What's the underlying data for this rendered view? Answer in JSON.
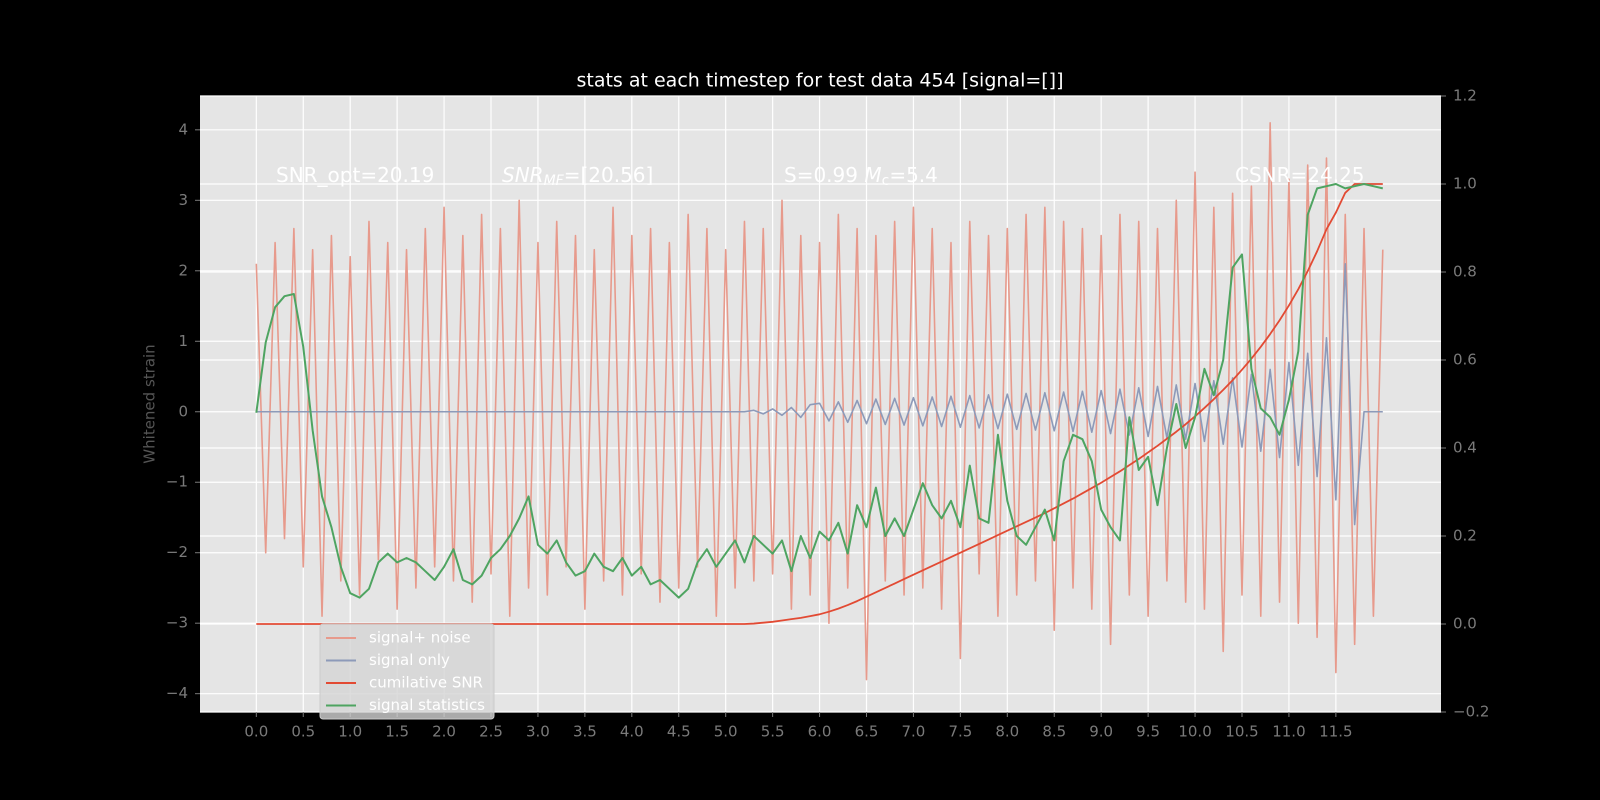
{
  "chart_data": {
    "type": "line",
    "title": "stats at each timestep for test data 454 [signal=[]]",
    "y_label": "Whitened strain",
    "annotations": [
      [
        {
          "text": "SNR_opt=20.19"
        }
      ],
      [
        {
          "text": "SNR",
          "italic": true
        },
        {
          "text": "MF",
          "sub": true,
          "italic": true
        },
        {
          "text": "=[20.56]"
        }
      ],
      [
        {
          "text": "S=0.99   "
        },
        {
          "text": "M",
          "italic": true
        },
        {
          "text": "c",
          "sub": true
        },
        {
          "text": "=5.4"
        }
      ],
      [
        {
          "text": "CSNR=24.25"
        }
      ]
    ],
    "xlim": [
      -0.6,
      12.62
    ],
    "ylim": [
      -4.26,
      4.48
    ],
    "y2lim": [
      -0.2,
      1.2
    ],
    "xticks": [
      {
        "value": 0,
        "label": "0.0"
      },
      0.5,
      {
        "value": 1,
        "label": "1.0"
      },
      1.5,
      {
        "value": 2,
        "label": "2.0"
      },
      2.5,
      {
        "value": 3,
        "label": "3.0"
      },
      3.5,
      {
        "value": 4,
        "label": "4.0"
      },
      4.5,
      {
        "value": 5,
        "label": "5.0"
      },
      5.5,
      {
        "value": 6,
        "label": "6.0"
      },
      6.5,
      {
        "value": 7,
        "label": "7.0"
      },
      7.5,
      {
        "value": 8,
        "label": "8.0"
      },
      8.5,
      {
        "value": 9,
        "label": "9.0"
      },
      9.5,
      {
        "value": 10,
        "label": "10.0"
      },
      10.5,
      {
        "value": 11,
        "label": "11.0"
      },
      11.5
    ],
    "yticks": [
      {
        "value": -4,
        "label": "−4"
      },
      {
        "value": -3,
        "label": "−3"
      },
      {
        "value": -2,
        "label": "−2"
      },
      {
        "value": -1,
        "label": "−1"
      },
      0,
      1,
      2,
      3,
      4
    ],
    "y2ticks": [
      {
        "value": -0.2,
        "label": "−0.2"
      },
      {
        "value": 0,
        "label": "0.0"
      },
      0.2,
      0.4,
      0.6,
      0.8,
      {
        "value": 1,
        "label": "1.0"
      },
      1.2
    ],
    "grid": true,
    "legend": "lower left",
    "x": [
      0,
      0.1,
      0.2,
      0.3,
      0.4,
      0.5,
      0.6,
      0.7,
      0.8,
      0.9,
      1,
      1.1,
      1.2,
      1.3,
      1.4,
      1.5,
      1.6,
      1.7,
      1.8,
      1.9,
      2,
      2.1,
      2.2,
      2.3,
      2.4,
      2.5,
      2.6,
      2.7,
      2.8,
      2.9,
      3,
      3.1,
      3.2,
      3.3,
      3.4,
      3.5,
      3.6,
      3.7,
      3.8,
      3.9,
      4,
      4.1,
      4.2,
      4.3,
      4.4,
      4.5,
      4.6,
      4.7,
      4.8,
      4.9,
      5,
      5.1,
      5.2,
      5.3,
      5.4,
      5.5,
      5.6,
      5.7,
      5.8,
      5.9,
      6,
      6.1,
      6.2,
      6.3,
      6.4,
      6.5,
      6.6,
      6.7,
      6.8,
      6.9,
      7,
      7.1,
      7.2,
      7.3,
      7.4,
      7.5,
      7.6,
      7.7,
      7.8,
      7.9,
      8,
      8.1,
      8.2,
      8.3,
      8.4,
      8.5,
      8.6,
      8.7,
      8.8,
      8.9,
      9,
      9.1,
      9.2,
      9.3,
      9.4,
      9.5,
      9.6,
      9.7,
      9.8,
      9.9,
      10,
      10.1,
      10.2,
      10.3,
      10.4,
      10.5,
      10.6,
      10.7,
      10.8,
      10.9,
      11,
      11.1,
      11.2,
      11.3,
      11.4,
      11.5,
      11.6,
      11.7,
      11.8,
      11.9,
      12
    ],
    "series": [
      {
        "name": "signal+ noise",
        "color": "#e79a8c",
        "axis": "y",
        "values": [
          2.1,
          -2.0,
          2.4,
          -1.8,
          2.6,
          -2.2,
          2.3,
          -2.9,
          2.5,
          -2.4,
          2.2,
          -2.6,
          2.7,
          -2.1,
          2.4,
          -2.8,
          2.3,
          -2.5,
          2.6,
          -2.2,
          2.9,
          -2.4,
          2.5,
          -2.7,
          2.8,
          -2.3,
          2.6,
          -2.9,
          3.0,
          -2.5,
          2.4,
          -2.6,
          2.7,
          -2.2,
          2.5,
          -2.8,
          2.3,
          -2.4,
          2.9,
          -2.6,
          2.5,
          -2.3,
          2.6,
          -2.7,
          2.4,
          -2.5,
          2.8,
          -2.2,
          2.6,
          -2.9,
          2.3,
          -2.5,
          2.7,
          -2.4,
          2.6,
          -2.3,
          3.0,
          -2.8,
          2.5,
          -2.6,
          2.4,
          -3.0,
          2.8,
          -2.5,
          2.6,
          -3.8,
          2.5,
          -2.4,
          2.7,
          -2.6,
          2.9,
          -2.5,
          2.6,
          -2.8,
          2.4,
          -3.5,
          2.7,
          -2.3,
          2.5,
          -2.9,
          2.6,
          -2.6,
          2.8,
          -2.4,
          2.9,
          -3.1,
          2.7,
          -2.5,
          2.6,
          -2.8,
          2.5,
          -3.3,
          2.8,
          -2.6,
          2.7,
          -2.9,
          2.6,
          -2.4,
          3.0,
          -2.7,
          3.4,
          -2.8,
          2.9,
          -3.4,
          3.1,
          -2.6,
          3.2,
          -2.9,
          4.1,
          -2.7,
          3.3,
          -3.0,
          3.5,
          -3.2,
          3.6,
          -3.7,
          2.8,
          -3.3,
          2.6,
          -2.9,
          2.3
        ]
      },
      {
        "name": "signal only",
        "color": "#8d9ab9",
        "axis": "y",
        "values": [
          0,
          0,
          0,
          0,
          0,
          0,
          0,
          0,
          0,
          0,
          0,
          0,
          0,
          0,
          0,
          0,
          0,
          0,
          0,
          0,
          0,
          0,
          0,
          0,
          0,
          0,
          0,
          0,
          0,
          0,
          0,
          0,
          0,
          0,
          0,
          0,
          0,
          0,
          0,
          0,
          0,
          0,
          0,
          0,
          0,
          0,
          0,
          0,
          0,
          0,
          0,
          0,
          0,
          0.02,
          -0.03,
          0.04,
          -0.05,
          0.06,
          -0.08,
          0.1,
          0.12,
          -0.13,
          0.14,
          -0.15,
          0.16,
          -0.17,
          0.18,
          -0.18,
          0.19,
          -0.19,
          0.2,
          -0.2,
          0.21,
          -0.21,
          0.22,
          -0.22,
          0.23,
          -0.23,
          0.24,
          -0.24,
          0.25,
          -0.25,
          0.26,
          -0.26,
          0.27,
          -0.27,
          0.28,
          -0.28,
          0.29,
          -0.29,
          0.3,
          -0.31,
          0.32,
          -0.33,
          0.34,
          -0.35,
          0.36,
          -0.37,
          0.38,
          -0.39,
          0.4,
          -0.42,
          0.44,
          -0.46,
          0.48,
          -0.5,
          0.53,
          -0.56,
          0.6,
          -0.65,
          0.7,
          -0.76,
          0.83,
          -0.92,
          1.05,
          -1.25,
          2.1,
          -1.6,
          0,
          0,
          0
        ]
      },
      {
        "name": "cumilative SNR",
        "color": "#e24a33",
        "axis": "y2",
        "values": [
          0,
          0,
          0,
          0,
          0,
          0,
          0,
          0,
          0,
          0,
          0,
          0,
          0,
          0,
          0,
          0,
          0,
          0,
          0,
          0,
          0,
          0,
          0,
          0,
          0,
          0,
          0,
          0,
          0,
          0,
          0,
          0,
          0,
          0,
          0,
          0,
          0,
          0,
          0,
          0,
          0,
          0,
          0,
          0,
          0,
          0,
          0,
          0,
          0,
          0,
          0,
          0,
          0,
          0.001,
          0.003,
          0.005,
          0.008,
          0.011,
          0.014,
          0.018,
          0.022,
          0.028,
          0.035,
          0.043,
          0.052,
          0.062,
          0.072,
          0.082,
          0.092,
          0.102,
          0.112,
          0.122,
          0.132,
          0.142,
          0.152,
          0.162,
          0.172,
          0.182,
          0.192,
          0.202,
          0.212,
          0.222,
          0.232,
          0.242,
          0.252,
          0.263,
          0.274,
          0.285,
          0.297,
          0.309,
          0.321,
          0.334,
          0.347,
          0.361,
          0.375,
          0.39,
          0.405,
          0.421,
          0.437,
          0.454,
          0.472,
          0.491,
          0.511,
          0.532,
          0.554,
          0.578,
          0.603,
          0.63,
          0.659,
          0.69,
          0.724,
          0.761,
          0.802,
          0.847,
          0.897,
          0.935,
          0.98,
          1.0,
          1.0,
          1.0,
          1.0
        ]
      },
      {
        "name": "signal statistics",
        "color": "#4ea461",
        "axis": "y2",
        "values": [
          0.48,
          0.64,
          0.72,
          0.745,
          0.75,
          0.63,
          0.44,
          0.29,
          0.22,
          0.13,
          0.07,
          0.06,
          0.08,
          0.14,
          0.16,
          0.14,
          0.15,
          0.14,
          0.12,
          0.1,
          0.13,
          0.17,
          0.1,
          0.09,
          0.11,
          0.15,
          0.17,
          0.2,
          0.24,
          0.29,
          0.18,
          0.16,
          0.19,
          0.14,
          0.11,
          0.12,
          0.16,
          0.13,
          0.12,
          0.15,
          0.11,
          0.13,
          0.09,
          0.1,
          0.08,
          0.06,
          0.08,
          0.14,
          0.17,
          0.13,
          0.16,
          0.19,
          0.14,
          0.2,
          0.18,
          0.16,
          0.19,
          0.12,
          0.2,
          0.15,
          0.21,
          0.19,
          0.23,
          0.16,
          0.27,
          0.22,
          0.31,
          0.2,
          0.24,
          0.2,
          0.26,
          0.32,
          0.27,
          0.24,
          0.28,
          0.22,
          0.36,
          0.24,
          0.23,
          0.43,
          0.28,
          0.2,
          0.18,
          0.22,
          0.26,
          0.19,
          0.37,
          0.43,
          0.42,
          0.37,
          0.26,
          0.22,
          0.19,
          0.47,
          0.35,
          0.38,
          0.27,
          0.4,
          0.5,
          0.4,
          0.47,
          0.58,
          0.52,
          0.6,
          0.81,
          0.84,
          0.58,
          0.49,
          0.47,
          0.43,
          0.51,
          0.62,
          0.93,
          0.99,
          0.995,
          1.0,
          0.99,
          0.995,
          1.0,
          0.995,
          0.99
        ]
      }
    ]
  }
}
